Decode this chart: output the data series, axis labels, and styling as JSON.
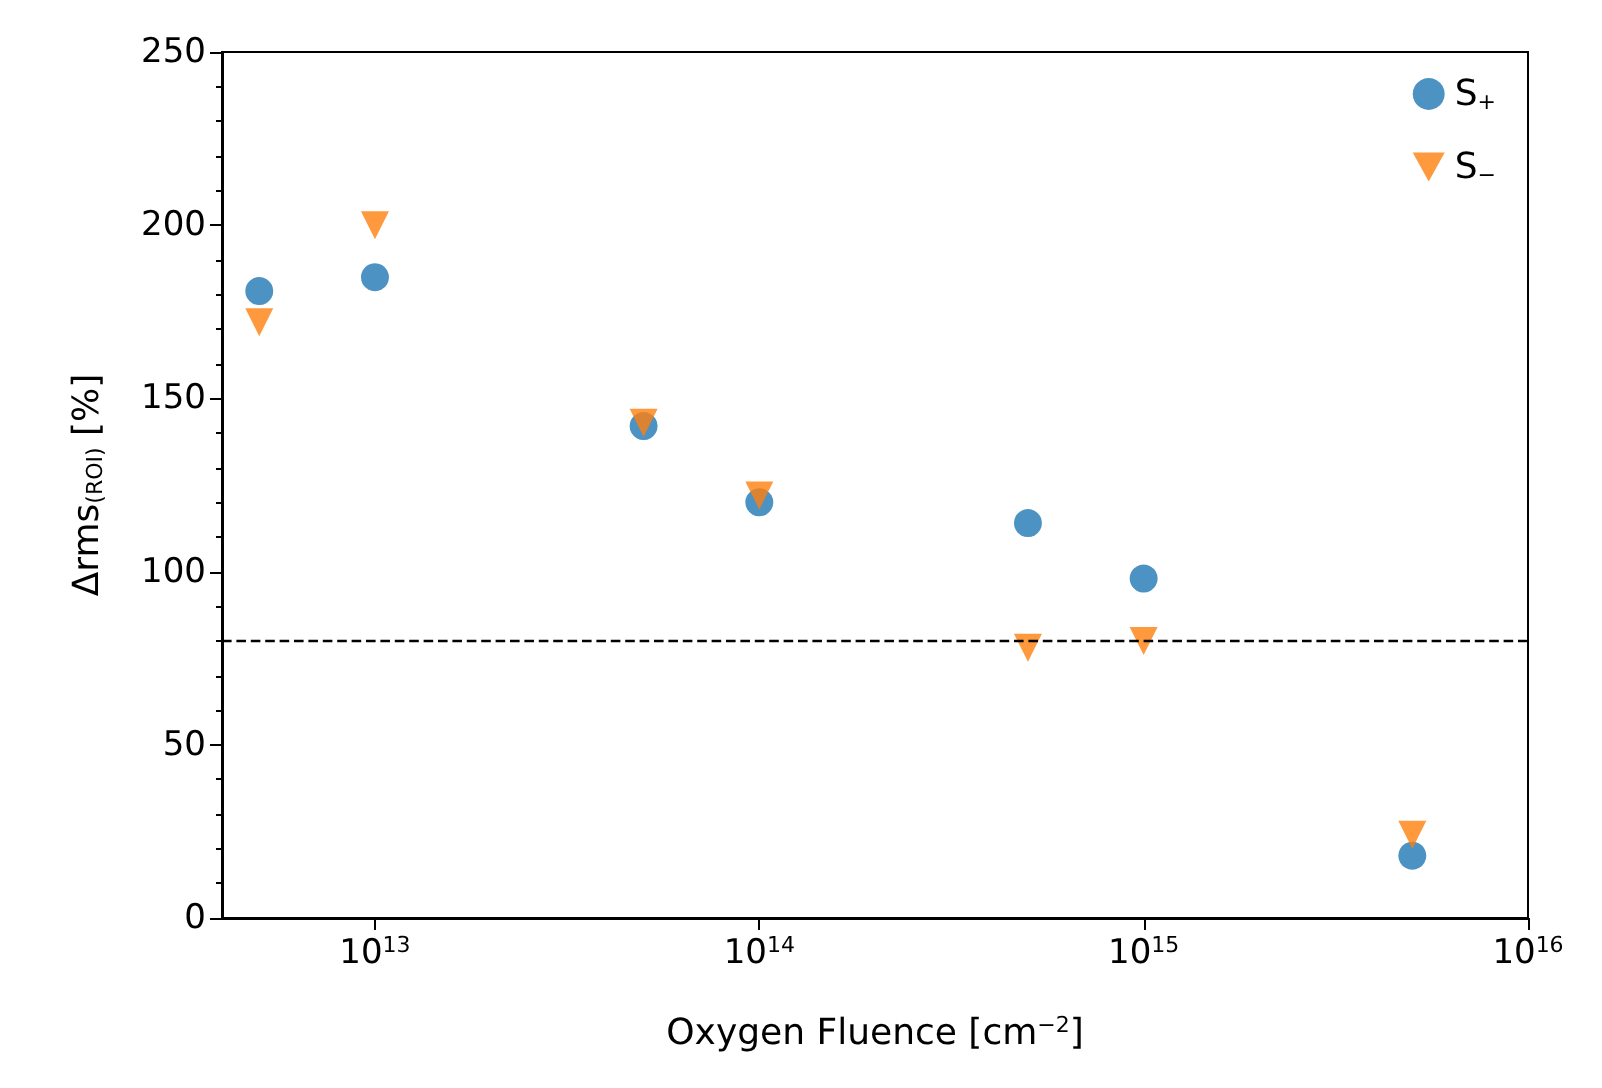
{
  "chart_data": {
    "type": "scatter",
    "xlabel": "Oxygen Fluence [cm$^{−2}$]",
    "ylabel": "Δrms$_{(ROI)}$ [%]",
    "log": "x",
    "grid": false,
    "legend": "top right",
    "xlim": [
      4000000000000.0,
      1e+16
    ],
    "xticks": [
      {
        "value": 10000000000000.0,
        "label": "10$^{13}$"
      },
      {
        "value": 100000000000000.0,
        "label": "10$^{14}$"
      },
      {
        "value": 1000000000000000.0,
        "label": "10$^{15}$"
      },
      {
        "value": 1e+16,
        "label": "10$^{16}$"
      }
    ],
    "ylim": [
      0,
      250
    ],
    "yticks": [
      0,
      50,
      100,
      150,
      200,
      250
    ],
    "x": [
      5000000000000.0,
      10000000000000.0,
      50000000000000.0,
      100000000000000.0,
      500000000000000.0,
      1000000000000000.0,
      5000000000000000.0
    ],
    "series": [
      {
        "name": "S$_{+}$",
        "color": "#1f77b4",
        "marker": "circle",
        "values": [
          181,
          185,
          142,
          120,
          114,
          98,
          18
        ]
      },
      {
        "name": "S$_{−}$",
        "color": "#ff7f0e",
        "marker": "triangle",
        "values": [
          172,
          200,
          143,
          122,
          78,
          80,
          24
        ]
      }
    ],
    "ref_lines": [
      {
        "axis": "y",
        "value": 80,
        "label": null,
        "color": "#000000",
        "line_style": "dashed"
      }
    ]
  }
}
